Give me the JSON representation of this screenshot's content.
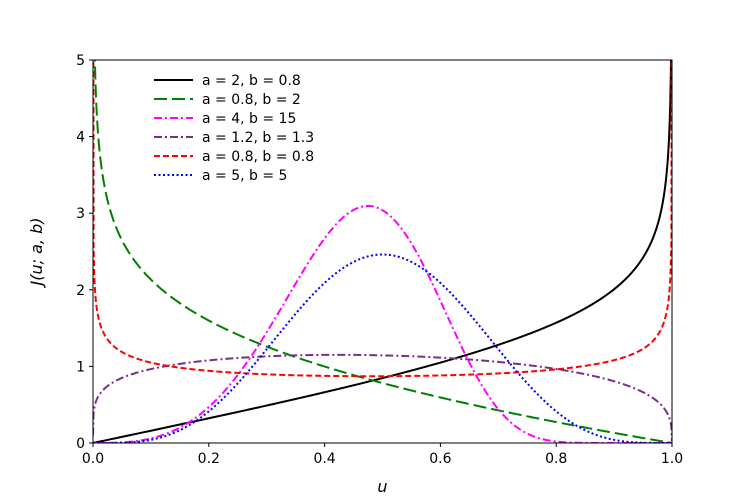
{
  "chart_data": {
    "type": "line",
    "title": "",
    "xlabel": "u",
    "ylabel": "J(u; a, b)",
    "xlim": [
      0.0,
      1.0
    ],
    "ylim": [
      0,
      5
    ],
    "xticks": [
      "0.0",
      "0.2",
      "0.4",
      "0.6",
      "0.8",
      "1.0"
    ],
    "yticks": [
      "0",
      "1",
      "2",
      "3",
      "4",
      "5"
    ],
    "grid": false,
    "legend_position": "top-left",
    "series": [
      {
        "name": "a = 2, b = 0.8",
        "a": 2,
        "b": 0.8,
        "color": "#000000",
        "dash": "solid"
      },
      {
        "name": "a = 0.8, b = 2",
        "a": 0.8,
        "b": 2,
        "color": "#008000",
        "dash": "long-dash"
      },
      {
        "name": "a = 4, b = 15",
        "a": 4,
        "b": 15,
        "color": "#ff00ff",
        "dash": "dash-dot"
      },
      {
        "name": "a = 1.2, b = 1.3",
        "a": 1.2,
        "b": 1.3,
        "color": "#7b2d8e",
        "dash": "dash-dot"
      },
      {
        "name": "a = 0.8, b = 0.8",
        "a": 0.8,
        "b": 0.8,
        "color": "#ff0000",
        "dash": "dashed"
      },
      {
        "name": "a = 5, b = 5",
        "a": 5,
        "b": 5,
        "color": "#0000ff",
        "dash": "dotted"
      }
    ]
  }
}
